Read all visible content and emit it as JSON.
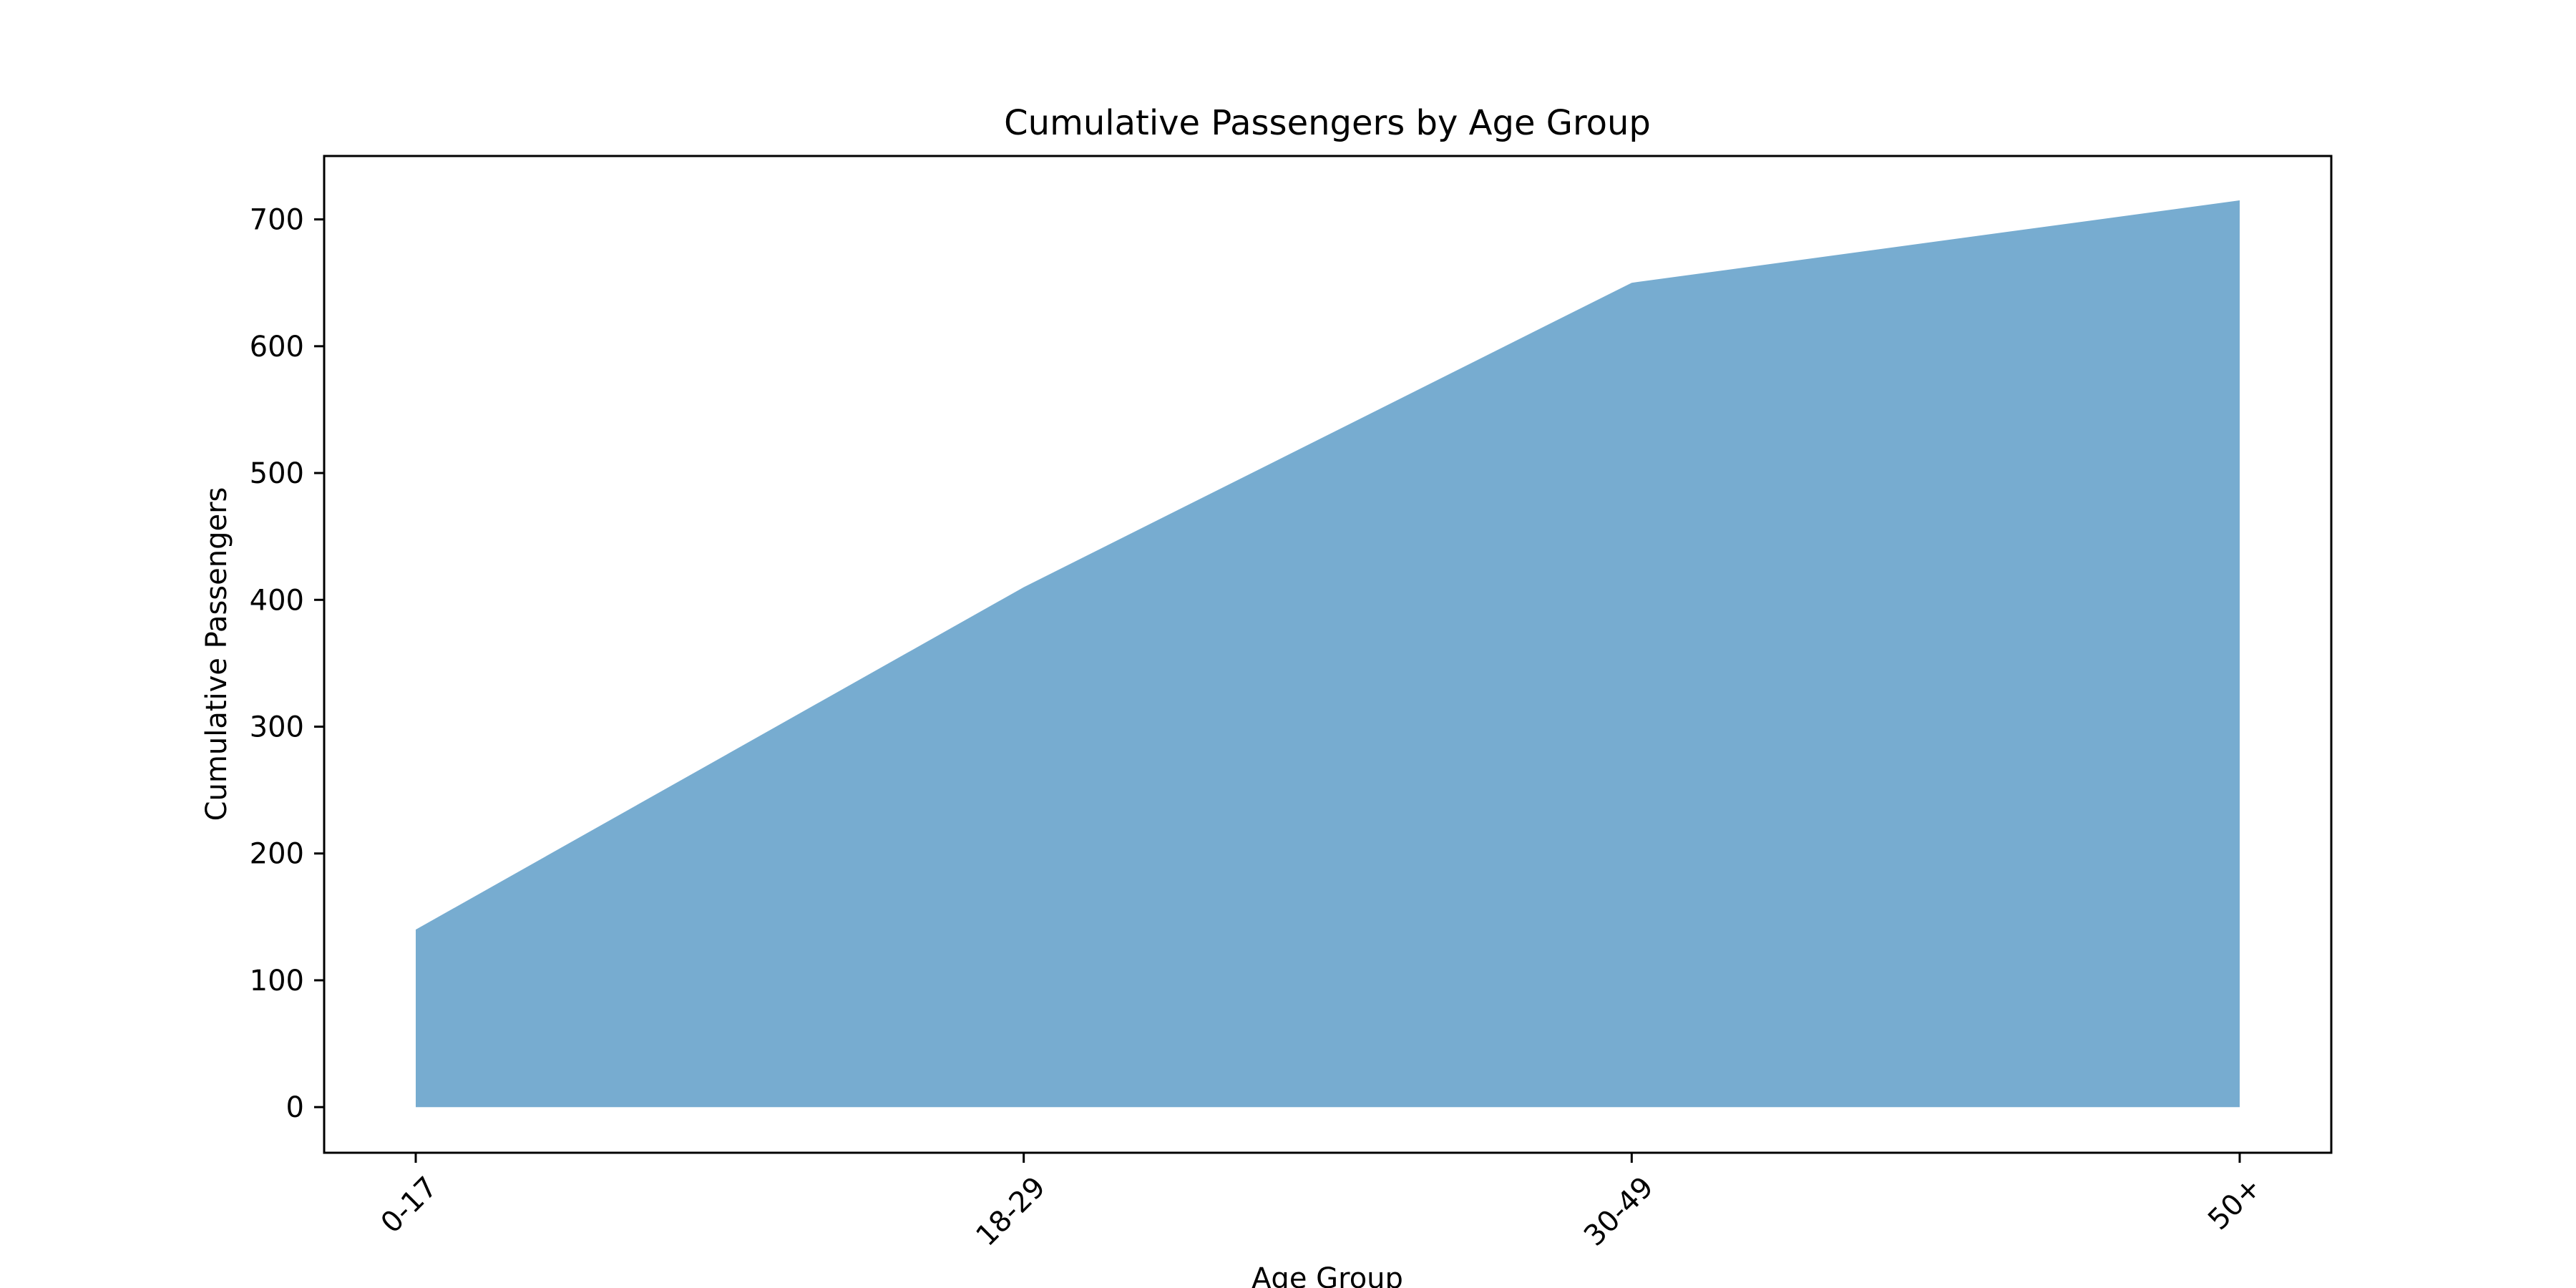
{
  "chart_data": {
    "type": "area",
    "title": "Cumulative Passengers by Age Group",
    "xlabel": "Age Group",
    "ylabel": "Cumulative Passengers",
    "categories": [
      "0-17",
      "18-29",
      "30-49",
      "50+"
    ],
    "values": [
      140,
      410,
      650,
      715
    ],
    "ylim": [
      -36,
      750
    ],
    "yticks": [
      0,
      100,
      200,
      300,
      400,
      500,
      600,
      700
    ],
    "grid": false,
    "legend": "none",
    "x_tick_rotation": 45,
    "colors": {
      "fill": "#77acd0",
      "axes": "#000000",
      "background": "#ffffff"
    }
  }
}
